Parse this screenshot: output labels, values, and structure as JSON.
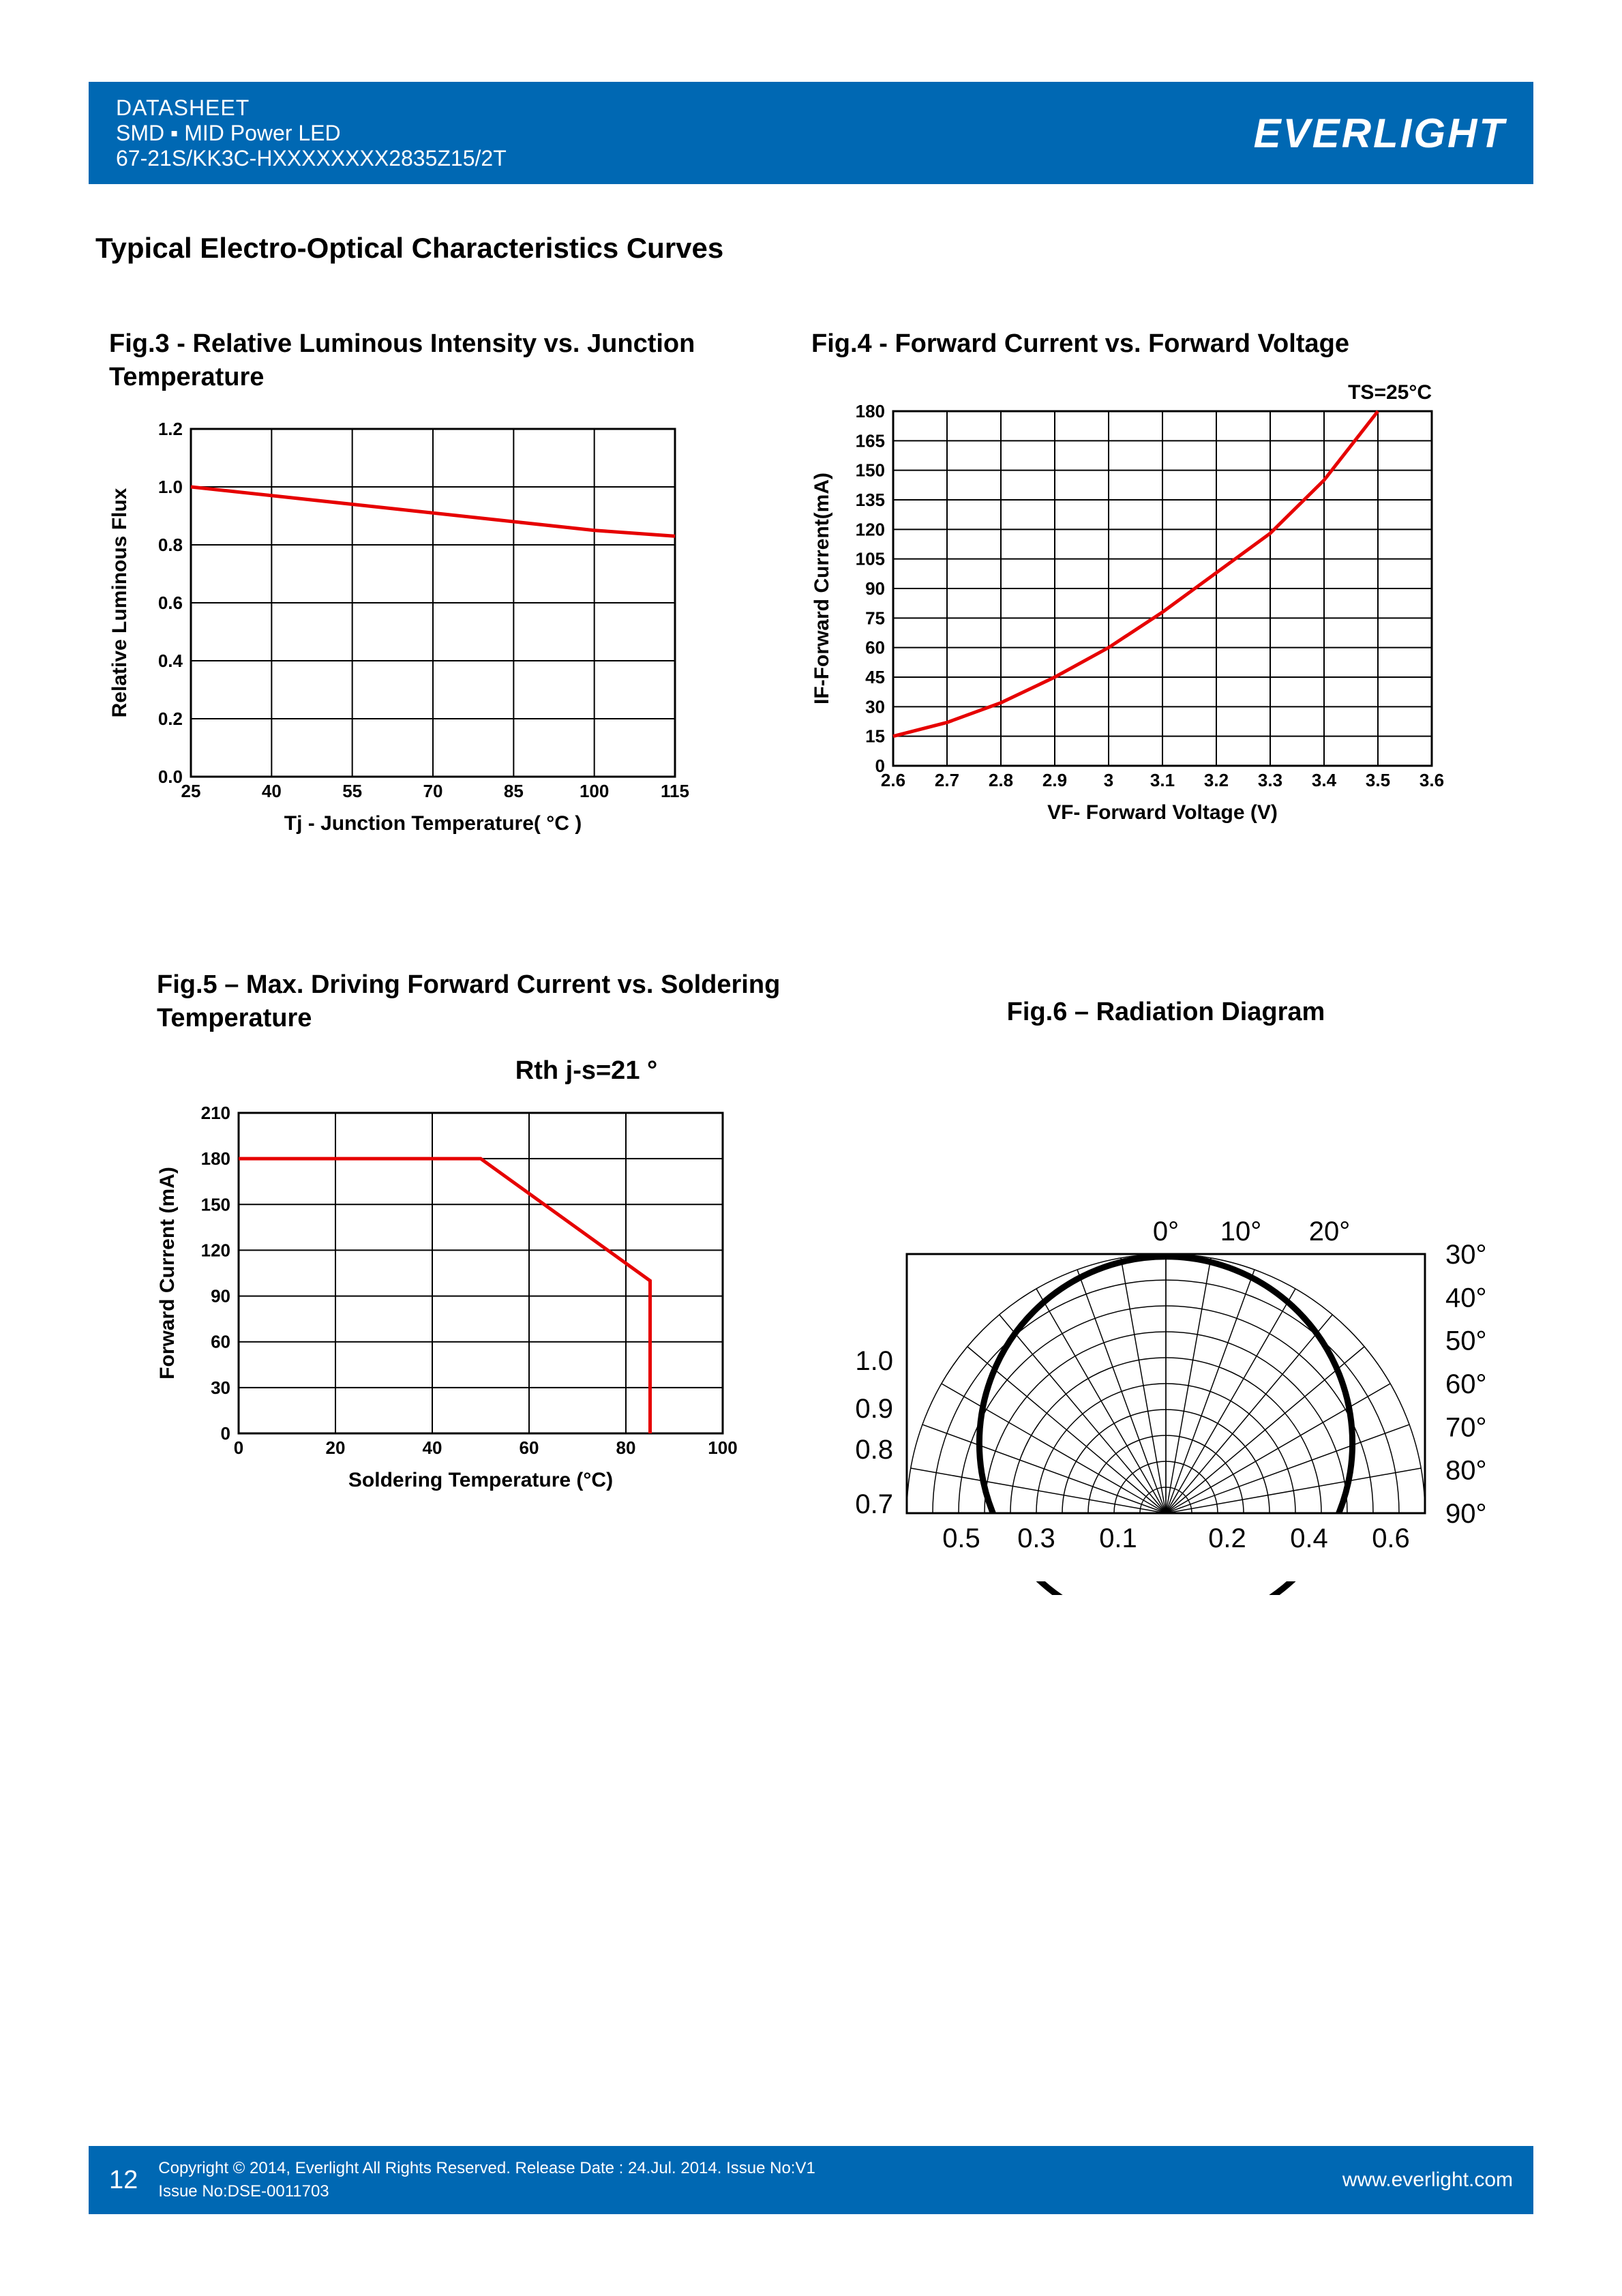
{
  "header": {
    "line1": "DATASHEET",
    "line2": "SMD ▪ MID Power LED",
    "line3": "67-21S/KK3C-HXXXXXXXX2835Z15/2T",
    "logo": "EVERLIGHT"
  },
  "section_title": "Typical Electro-Optical Characteristics Curves",
  "fig3": {
    "title": "Fig.3 - Relative Luminous Intensity vs. Junction Temperature",
    "type": "line",
    "xlabel": "Tj - Junction Temperature( °C )",
    "ylabel": "Relative Luminous Flux",
    "xlim": [
      25,
      115
    ],
    "ylim": [
      0,
      1.2
    ],
    "xticks": [
      25,
      40,
      55,
      70,
      85,
      100,
      115
    ],
    "yticks": [
      0.0,
      0.2,
      0.4,
      0.6,
      0.8,
      1.0,
      1.2
    ],
    "ytick_labels": [
      "0.0",
      "0.2",
      "0.4",
      "0.6",
      "0.8",
      "1.0",
      "1.2"
    ],
    "line_color": "#e60000",
    "line_width": 5,
    "grid_color": "#000000",
    "data": [
      [
        25,
        1.0
      ],
      [
        40,
        0.97
      ],
      [
        55,
        0.94
      ],
      [
        70,
        0.91
      ],
      [
        85,
        0.88
      ],
      [
        100,
        0.85
      ],
      [
        115,
        0.83
      ]
    ],
    "axis_fontsize": 26,
    "label_fontsize": 30
  },
  "fig4": {
    "title": "Fig.4 - Forward Current vs. Forward Voltage",
    "annotation": "TS=25°C",
    "type": "line",
    "xlabel": "VF- Forward Voltage (V)",
    "ylabel": "IF-Forward Current(mA)",
    "xlim": [
      2.6,
      3.6
    ],
    "ylim": [
      0,
      180
    ],
    "xticks": [
      2.6,
      2.7,
      2.8,
      2.9,
      3.0,
      3.1,
      3.2,
      3.3,
      3.4,
      3.5,
      3.6
    ],
    "yticks": [
      0,
      15,
      30,
      45,
      60,
      75,
      90,
      105,
      120,
      135,
      150,
      165,
      180
    ],
    "line_color": "#e60000",
    "line_width": 5,
    "grid_color": "#000000",
    "data": [
      [
        2.6,
        15
      ],
      [
        2.7,
        22
      ],
      [
        2.8,
        32
      ],
      [
        2.9,
        45
      ],
      [
        3.0,
        60
      ],
      [
        3.1,
        78
      ],
      [
        3.2,
        98
      ],
      [
        3.3,
        118
      ],
      [
        3.4,
        145
      ],
      [
        3.5,
        180
      ]
    ],
    "axis_fontsize": 26,
    "label_fontsize": 30
  },
  "fig5": {
    "title": "Fig.5 – Max. Driving Forward Current vs. Soldering Temperature",
    "subtitle": "Rth j-s=21 °",
    "type": "line",
    "xlabel": "Soldering Temperature (°C)",
    "ylabel": "Forward Current (mA)",
    "xlim": [
      0,
      100
    ],
    "ylim": [
      0,
      210
    ],
    "xticks": [
      0,
      20,
      40,
      60,
      80,
      100
    ],
    "yticks": [
      0,
      30,
      60,
      90,
      120,
      150,
      180,
      210
    ],
    "line_color": "#e60000",
    "line_width": 5,
    "grid_color": "#000000",
    "data": [
      [
        0,
        180
      ],
      [
        50,
        180
      ],
      [
        85,
        100
      ],
      [
        85,
        0
      ]
    ],
    "axis_fontsize": 26,
    "label_fontsize": 30
  },
  "fig6": {
    "title": "Fig.6 – Radiation Diagram",
    "type": "polar",
    "angle_labels_top": [
      "0°",
      "10°",
      "20°"
    ],
    "angle_labels_right": [
      "30°",
      "40°",
      "50°",
      "60°",
      "70°",
      "80°",
      "90°"
    ],
    "radial_labels_left": [
      "1.0",
      "0.9",
      "0.8",
      "0.7"
    ],
    "radial_labels_bottom": [
      "0.5",
      "0.3",
      "0.1",
      "0.2",
      "0.4",
      "0.6"
    ],
    "grid_color": "#000000",
    "curve_color": "#000000",
    "curve_width": 9
  },
  "footer": {
    "page": "12",
    "copyright": "Copyright © 2014, Everlight All Rights Reserved. Release Date : 24.Jul. 2014. Issue No:V1",
    "issue": "Issue No:DSE-0011703",
    "url": "www.everlight.com"
  },
  "colors": {
    "header_bg": "#0068b3",
    "text": "#000000"
  }
}
